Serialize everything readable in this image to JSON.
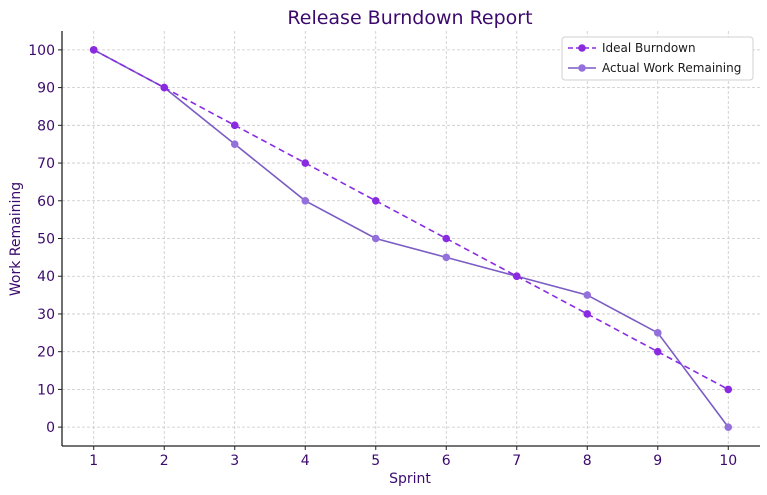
{
  "chart_data": {
    "type": "line",
    "title": "Release Burndown Report",
    "xlabel": "Sprint",
    "ylabel": "Work Remaining",
    "x": [
      1,
      2,
      3,
      4,
      5,
      6,
      7,
      8,
      9,
      10
    ],
    "xticks": [
      "1",
      "2",
      "3",
      "4",
      "5",
      "6",
      "7",
      "8",
      "9",
      "10"
    ],
    "yticks": [
      "0",
      "10",
      "20",
      "30",
      "40",
      "50",
      "60",
      "70",
      "80",
      "90",
      "100"
    ],
    "xlim": [
      0.55,
      10.45
    ],
    "ylim": [
      -5,
      105
    ],
    "grid": true,
    "legend_position": "upper right",
    "series": [
      {
        "name": "Ideal Burndown",
        "values": [
          100,
          90,
          80,
          70,
          60,
          50,
          40,
          30,
          20,
          10
        ],
        "color": "#8a2be2",
        "style": "dashed",
        "marker": "circle"
      },
      {
        "name": "Actual Work Remaining",
        "values": [
          100,
          90,
          75,
          60,
          50,
          45,
          40,
          35,
          25,
          0
        ],
        "color": "#9370db",
        "line_color": "#7b5cc4",
        "style": "solid",
        "marker": "circle"
      }
    ]
  }
}
